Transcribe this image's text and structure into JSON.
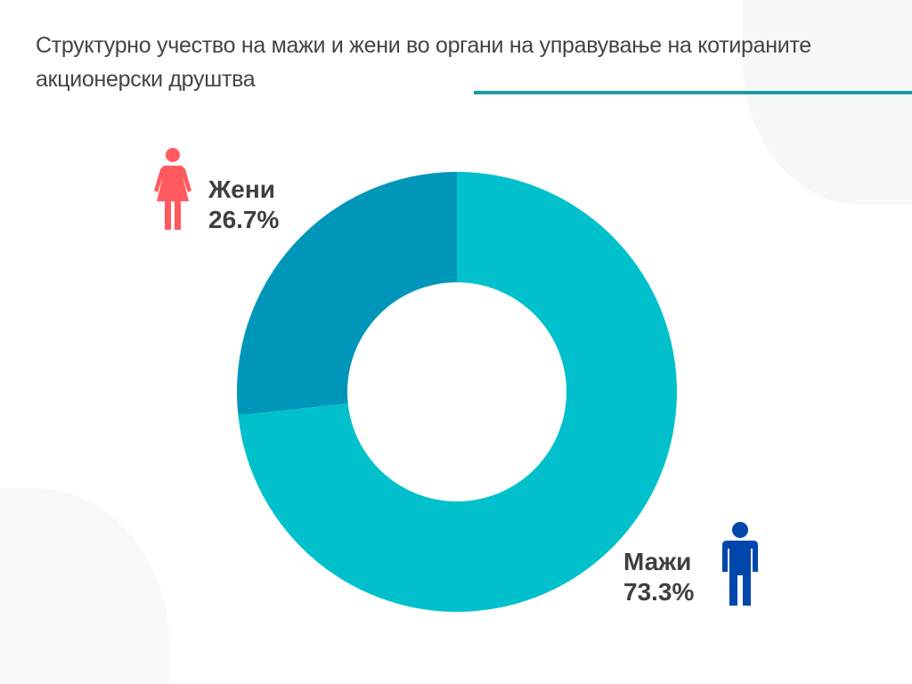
{
  "chart_data": {
    "type": "pie",
    "variant": "donut",
    "title": "Структурно учество на мажи и жени во органи на управување на котираните акционерски друштва",
    "categories": [
      "Жени",
      "Мажи"
    ],
    "values": [
      26.7,
      73.3
    ],
    "value_labels": [
      "26.7%",
      "73.3%"
    ],
    "colors": [
      "#0096BA",
      "#00C1CB"
    ],
    "icon_colors": {
      "women": "#FF5A5F",
      "men": "#0047AB"
    }
  }
}
